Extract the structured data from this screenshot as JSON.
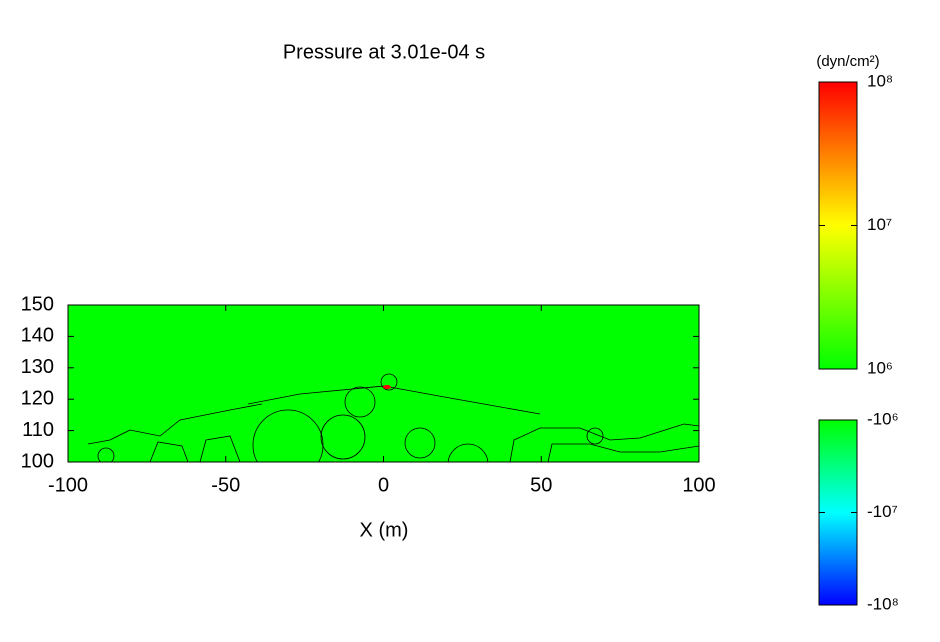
{
  "chart_data": {
    "type": "field",
    "title": "Pressure at 3.01e-04 s",
    "xlabel": "X (m)",
    "xlim": [
      -100,
      100
    ],
    "xticks": [
      -100,
      -50,
      0,
      50,
      100
    ],
    "ylim": [
      100,
      150
    ],
    "yticks": [
      100,
      110,
      120,
      130,
      140,
      150
    ],
    "field_color": "#00ff00",
    "colorbar_label": "(dyn/cm²)",
    "colorbars": [
      {
        "lim": [
          1000000,
          100000000
        ],
        "log": true,
        "colors": [
          "#00ff00",
          "#ffff00",
          "#ff0000"
        ],
        "ticks": [
          {
            "value": 1000000,
            "label": "10⁶"
          },
          {
            "value": 10000000,
            "label": "10⁷"
          },
          {
            "value": 100000000,
            "label": "10⁸"
          }
        ]
      },
      {
        "lim": [
          -100000000,
          -1000000
        ],
        "log": true,
        "colors": [
          "#0000ff",
          "#00ffff",
          "#00ff00"
        ],
        "ticks": [
          {
            "value": -100000000,
            "label": "-10⁸"
          },
          {
            "value": -10000000,
            "label": "-10⁷"
          },
          {
            "value": -1000000,
            "label": "-10⁶"
          }
        ]
      }
    ]
  }
}
